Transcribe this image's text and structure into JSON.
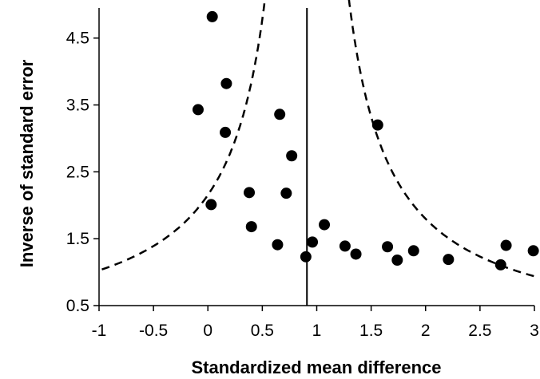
{
  "chart_data": {
    "type": "scatter",
    "title": "",
    "xlabel": "Standardized mean difference",
    "ylabel": "Inverse of standard error",
    "xlim": [
      -1,
      3
    ],
    "ylim": [
      0.5,
      4.95
    ],
    "xticks": [
      -1,
      -0.5,
      0,
      0.5,
      1,
      1.5,
      2,
      2.5,
      3
    ],
    "xtick_labels": [
      "-1",
      "-0.5",
      "0",
      "0.5",
      "1",
      "1.5",
      "2",
      "2.5",
      "3"
    ],
    "yticks": [
      0.5,
      1.5,
      2.5,
      3.5,
      4.5
    ],
    "ytick_labels": [
      "0.5",
      "1.5",
      "2.5",
      "3.5",
      "4.5"
    ],
    "grid": false,
    "legend": "none",
    "center_line_x": 0.91,
    "funnel_multiplier": 1.96,
    "colors": {
      "points": "#000000",
      "lines": "#000000"
    },
    "points": [
      {
        "x": 0.04,
        "y": 4.82
      },
      {
        "x": 0.17,
        "y": 3.82
      },
      {
        "x": -0.09,
        "y": 3.43
      },
      {
        "x": 0.66,
        "y": 3.36
      },
      {
        "x": 0.16,
        "y": 3.09
      },
      {
        "x": 1.56,
        "y": 3.2
      },
      {
        "x": 0.77,
        "y": 2.74
      },
      {
        "x": 0.38,
        "y": 2.19
      },
      {
        "x": 0.72,
        "y": 2.18
      },
      {
        "x": 0.03,
        "y": 2.01
      },
      {
        "x": 0.4,
        "y": 1.68
      },
      {
        "x": 1.07,
        "y": 1.71
      },
      {
        "x": 0.64,
        "y": 1.41
      },
      {
        "x": 0.96,
        "y": 1.45
      },
      {
        "x": 0.9,
        "y": 1.23
      },
      {
        "x": 1.26,
        "y": 1.39
      },
      {
        "x": 1.36,
        "y": 1.27
      },
      {
        "x": 1.65,
        "y": 1.38
      },
      {
        "x": 1.74,
        "y": 1.18
      },
      {
        "x": 1.89,
        "y": 1.32
      },
      {
        "x": 2.21,
        "y": 1.19
      },
      {
        "x": 2.69,
        "y": 1.11
      },
      {
        "x": 2.74,
        "y": 1.4
      },
      {
        "x": 2.99,
        "y": 1.32
      }
    ]
  }
}
